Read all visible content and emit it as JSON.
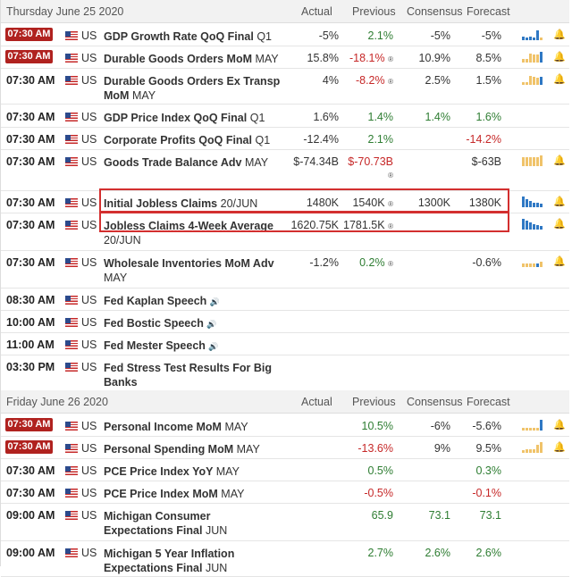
{
  "days": [
    {
      "header": {
        "date": "Thursday June 25 2020",
        "actual": "Actual",
        "previous": "Previous",
        "consensus": "Consensus",
        "forecast": "Forecast"
      },
      "events": [
        {
          "time": "07:30 AM",
          "badge": true,
          "country": "US",
          "name": "GDP Growth Rate QoQ Final",
          "period": "Q1",
          "actual": "-5%",
          "previous": "2.1%",
          "prev_class": "pos",
          "consensus": "-5%",
          "forecast": "-5%",
          "fc_class": ""
        },
        {
          "time": "07:30 AM",
          "badge": true,
          "country": "US",
          "name": "Durable Goods Orders MoM",
          "period": "MAY",
          "actual": "15.8%",
          "previous": "-18.1%",
          "prev_class": "neg",
          "prev_rev": "®",
          "consensus": "10.9%",
          "forecast": "8.5%",
          "fc_class": ""
        },
        {
          "time": "07:30 AM",
          "badge": false,
          "country": "US",
          "name": "Durable Goods Orders Ex Transp MoM",
          "period": "MAY",
          "actual": "4%",
          "previous": "-8.2%",
          "prev_class": "neg",
          "prev_rev": "®",
          "consensus": "2.5%",
          "forecast": "1.5%",
          "fc_class": ""
        },
        {
          "time": "07:30 AM",
          "badge": false,
          "country": "US",
          "name": "GDP Price Index QoQ Final",
          "period": "Q1",
          "actual": "1.6%",
          "previous": "1.4%",
          "prev_class": "pos",
          "consensus": "1.4%",
          "cons_class": "pos",
          "forecast": "1.6%",
          "fc_class": "pos"
        },
        {
          "time": "07:30 AM",
          "badge": false,
          "country": "US",
          "name": "Corporate Profits QoQ Final",
          "period": "Q1",
          "actual": "-12.4%",
          "previous": "2.1%",
          "prev_class": "pos",
          "consensus": "",
          "forecast": "-14.2%",
          "fc_class": "neg"
        },
        {
          "time": "07:30 AM",
          "badge": false,
          "country": "US",
          "name": "Goods Trade Balance Adv",
          "period": "MAY",
          "actual": "$-74.34B",
          "previous": "$-70.73B",
          "prev_class": "neg",
          "prev_rev": "®",
          "consensus": "",
          "forecast": "$-63B",
          "fc_class": ""
        },
        {
          "time": "07:30 AM",
          "badge": false,
          "country": "US",
          "name": "Initial Jobless Claims",
          "period": "20/JUN",
          "actual": "1480K",
          "previous": "1540K",
          "prev_class": "",
          "prev_rev": "®",
          "consensus": "1300K",
          "forecast": "1380K",
          "fc_class": ""
        },
        {
          "time": "07:30 AM",
          "badge": false,
          "country": "US",
          "name": "Jobless Claims 4-Week Average",
          "period": "20/JUN",
          "actual": "1620.75K",
          "previous": "1781.5K",
          "prev_class": "",
          "prev_rev": "®",
          "consensus": "",
          "forecast": "",
          "fc_class": ""
        },
        {
          "time": "07:30 AM",
          "badge": false,
          "country": "US",
          "name": "Wholesale Inventories MoM Adv",
          "period": "MAY",
          "actual": "-1.2%",
          "previous": "0.2%",
          "prev_class": "pos",
          "prev_rev": "®",
          "consensus": "",
          "forecast": "-0.6%",
          "fc_class": ""
        },
        {
          "time": "08:30 AM",
          "badge": false,
          "country": "US",
          "name": "Fed Kaplan Speech",
          "period": "",
          "speech": true
        },
        {
          "time": "10:00 AM",
          "badge": false,
          "country": "US",
          "name": "Fed Bostic Speech",
          "period": "",
          "speech": true
        },
        {
          "time": "11:00 AM",
          "badge": false,
          "country": "US",
          "name": "Fed Mester Speech",
          "period": "",
          "speech": true
        },
        {
          "time": "03:30 PM",
          "badge": false,
          "country": "US",
          "name": "Fed Stress Test Results For Big Banks",
          "period": ""
        }
      ]
    },
    {
      "header": {
        "date": "Friday June 26 2020",
        "actual": "Actual",
        "previous": "Previous",
        "consensus": "Consensus",
        "forecast": "Forecast"
      },
      "events": [
        {
          "time": "07:30 AM",
          "badge": true,
          "country": "US",
          "name": "Personal Income MoM",
          "period": "MAY",
          "actual": "",
          "previous": "10.5%",
          "prev_class": "pos",
          "consensus": "-6%",
          "forecast": "-5.6%",
          "fc_class": ""
        },
        {
          "time": "07:30 AM",
          "badge": true,
          "country": "US",
          "name": "Personal Spending MoM",
          "period": "MAY",
          "actual": "",
          "previous": "-13.6%",
          "prev_class": "neg",
          "consensus": "9%",
          "forecast": "9.5%",
          "fc_class": ""
        },
        {
          "time": "07:30 AM",
          "badge": false,
          "country": "US",
          "name": "PCE Price Index YoY",
          "period": "MAY",
          "actual": "",
          "previous": "0.5%",
          "prev_class": "pos",
          "consensus": "",
          "forecast": "0.3%",
          "fc_class": "pos"
        },
        {
          "time": "07:30 AM",
          "badge": false,
          "country": "US",
          "name": "PCE Price Index MoM",
          "period": "MAY",
          "actual": "",
          "previous": "-0.5%",
          "prev_class": "neg",
          "consensus": "",
          "forecast": "-0.1%",
          "fc_class": "neg"
        },
        {
          "time": "09:00 AM",
          "badge": false,
          "country": "US",
          "name": "Michigan Consumer Expectations Final",
          "period": "JUN",
          "actual": "",
          "previous": "65.9",
          "prev_class": "pos",
          "consensus": "73.1",
          "cons_class": "pos",
          "forecast": "73.1",
          "fc_class": "pos"
        },
        {
          "time": "09:00 AM",
          "badge": false,
          "country": "US",
          "name": "Michigan 5 Year Inflation Expectations Final",
          "period": "JUN",
          "actual": "",
          "previous": "2.7%",
          "prev_class": "pos",
          "consensus": "2.6%",
          "cons_class": "pos",
          "forecast": "2.6%",
          "fc_class": "pos"
        }
      ]
    }
  ],
  "icons": {
    "flag": "us-flag-icon",
    "speech": "speaker-icon",
    "alert": "bell-icon",
    "chart": "sparkline-chart-icon"
  },
  "colors": {
    "badge": "#b0221f",
    "positive": "#2e7d32",
    "negative": "#c62828",
    "highlight": "#d32f2f",
    "spark_blue": "#2f78c4",
    "spark_gold": "#f0c36a"
  }
}
